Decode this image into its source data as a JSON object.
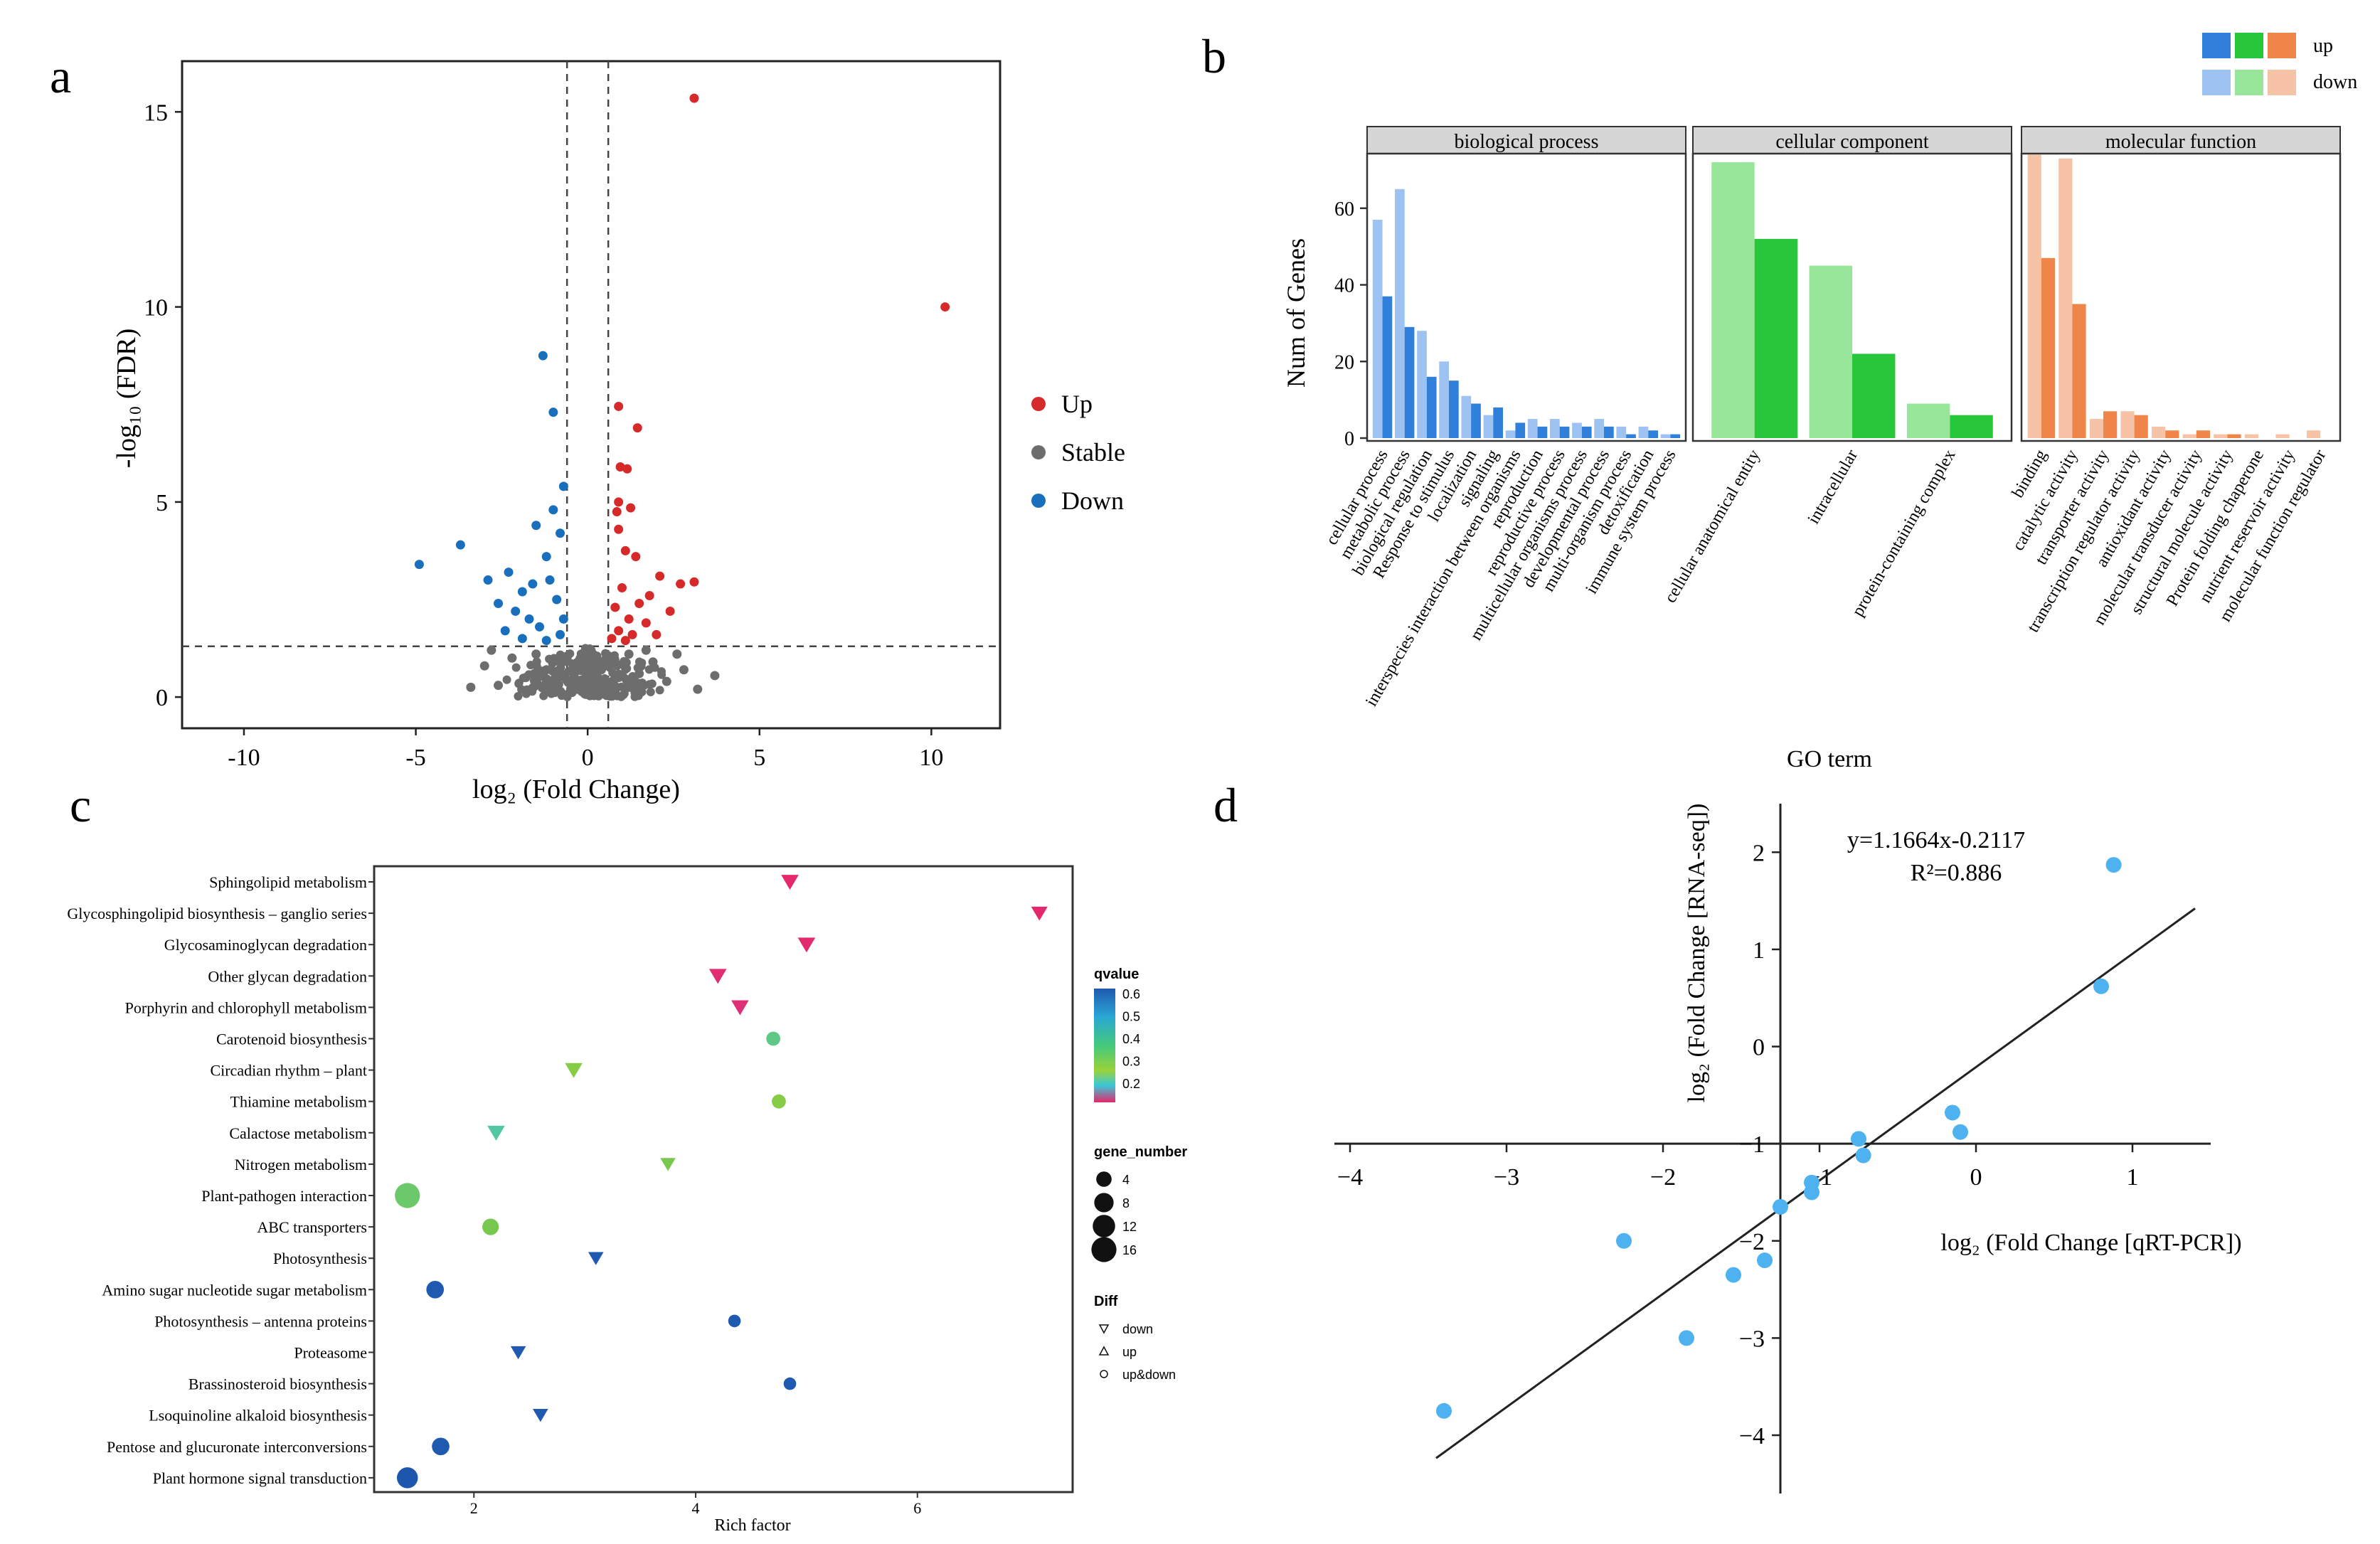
{
  "panels": {
    "a": "a",
    "b": "b",
    "c": "c",
    "d": "d"
  },
  "colors": {
    "up": "#d62a2a",
    "stable": "#6d6d6d",
    "down": "#1a6fbc",
    "bp_up": "#2f7fdb",
    "bp_down": "#9ec3f2",
    "cc_up": "#28c63a",
    "cc_down": "#98e69a",
    "mf_up": "#f0854a",
    "mf_down": "#f6c3a6",
    "qpcr": "#4db2ef"
  },
  "chart_data": [
    {
      "id": "a",
      "type": "scatter",
      "title": "",
      "xlabel": "log₂ (Fold Change)",
      "ylabel": "-log₁₀ (FDR)",
      "xlim": [
        -11.8,
        12
      ],
      "ylim": [
        -0.8,
        16.3
      ],
      "xticks": [
        -10,
        -5,
        0,
        5,
        10
      ],
      "yticks": [
        0,
        5,
        10,
        15
      ],
      "thresholds": {
        "x": [
          -0.6,
          0.6
        ],
        "y": 1.3
      },
      "legend": {
        "position": "right",
        "items": [
          "Up",
          "Stable",
          "Down"
        ]
      },
      "series": [
        {
          "name": "Up",
          "points": [
            [
              3.1,
              15.35
            ],
            [
              10.4,
              10.0
            ],
            [
              0.9,
              7.45
            ],
            [
              1.45,
              6.9
            ],
            [
              0.95,
              5.9
            ],
            [
              1.15,
              5.85
            ],
            [
              0.9,
              5.0
            ],
            [
              0.85,
              4.75
            ],
            [
              1.25,
              4.85
            ],
            [
              0.9,
              4.3
            ],
            [
              1.4,
              3.6
            ],
            [
              1.1,
              3.75
            ],
            [
              2.7,
              2.9
            ],
            [
              3.1,
              2.95
            ],
            [
              2.1,
              3.1
            ],
            [
              1.8,
              2.6
            ],
            [
              2.4,
              2.2
            ],
            [
              1.5,
              2.4
            ],
            [
              1.0,
              2.8
            ],
            [
              0.8,
              2.3
            ],
            [
              1.2,
              2.0
            ],
            [
              1.7,
              1.9
            ],
            [
              0.9,
              1.7
            ],
            [
              1.3,
              1.6
            ],
            [
              2.0,
              1.6
            ],
            [
              0.7,
              1.5
            ],
            [
              1.1,
              1.45
            ]
          ]
        },
        {
          "name": "Down",
          "points": [
            [
              -1.3,
              8.75
            ],
            [
              -1.0,
              7.3
            ],
            [
              -0.7,
              5.4
            ],
            [
              -1.0,
              4.8
            ],
            [
              -1.5,
              4.4
            ],
            [
              -0.8,
              4.2
            ],
            [
              -3.7,
              3.9
            ],
            [
              -4.9,
              3.4
            ],
            [
              -1.2,
              3.6
            ],
            [
              -2.9,
              3.0
            ],
            [
              -2.3,
              3.2
            ],
            [
              -1.9,
              2.7
            ],
            [
              -1.6,
              2.9
            ],
            [
              -1.1,
              3.0
            ],
            [
              -2.6,
              2.4
            ],
            [
              -2.1,
              2.2
            ],
            [
              -1.7,
              2.0
            ],
            [
              -0.9,
              2.5
            ],
            [
              -1.4,
              1.8
            ],
            [
              -0.8,
              1.6
            ],
            [
              -2.4,
              1.7
            ],
            [
              -1.2,
              1.45
            ],
            [
              -1.9,
              1.5
            ],
            [
              -0.7,
              2.0
            ]
          ]
        },
        {
          "name": "Stable",
          "points": [
            [
              -3.0,
              0.8
            ],
            [
              -2.6,
              0.3
            ],
            [
              -2.2,
              1.0
            ],
            [
              -1.8,
              0.5
            ],
            [
              -1.5,
              1.1
            ],
            [
              -1.2,
              0.7
            ],
            [
              -0.9,
              0.4
            ],
            [
              -0.6,
              1.0
            ],
            [
              -0.3,
              0.2
            ],
            [
              0.0,
              0.1
            ],
            [
              0.3,
              0.3
            ],
            [
              0.6,
              0.9
            ],
            [
              0.9,
              0.5
            ],
            [
              1.2,
              1.1
            ],
            [
              1.5,
              0.6
            ],
            [
              1.9,
              0.9
            ],
            [
              2.3,
              0.4
            ],
            [
              2.8,
              0.7
            ],
            [
              3.2,
              0.2
            ],
            [
              3.7,
              0.55
            ],
            [
              -3.4,
              0.25
            ],
            [
              -2.8,
              1.2
            ],
            [
              1.7,
              1.2
            ],
            [
              2.6,
              1.1
            ],
            [
              -0.4,
              0.6
            ],
            [
              0.4,
              0.7
            ]
          ]
        }
      ]
    },
    {
      "id": "b",
      "type": "bar",
      "xlabel": "GO term",
      "ylabel": "Num of Genes",
      "ylim": [
        0,
        75
      ],
      "yticks": [
        0,
        20,
        40,
        60
      ],
      "legend": {
        "position": "top-right",
        "labels": [
          "up",
          "down"
        ]
      },
      "facets": [
        {
          "name": "biological process",
          "categories": [
            "cellular process",
            "metabolic process",
            "biological regulation",
            "Response to stimulus",
            "localization",
            "signaling",
            "interspecies interaction between organisms",
            "reproduction",
            "reproductive process",
            "multicellular organisms process",
            "developmental process",
            "multi-organism process",
            "detoxification",
            "immune system process"
          ],
          "series": [
            {
              "name": "down",
              "values": [
                57,
                65,
                28,
                20,
                11,
                6,
                2,
                5,
                5,
                4,
                5,
                3,
                3,
                1
              ]
            },
            {
              "name": "up",
              "values": [
                37,
                29,
                16,
                15,
                9,
                8,
                4,
                3,
                3,
                3,
                3,
                1,
                2,
                1
              ]
            }
          ]
        },
        {
          "name": "cellular component",
          "categories": [
            "cellular anatomical entity",
            "intracellular",
            "protein-containing complex"
          ],
          "series": [
            {
              "name": "down",
              "values": [
                72,
                45,
                9
              ]
            },
            {
              "name": "up",
              "values": [
                52,
                22,
                6
              ]
            }
          ]
        },
        {
          "name": "molecular function",
          "categories": [
            "binding",
            "catalytic activity",
            "transporter activity",
            "transcription regulator activity",
            "antioxidant activity",
            "molecular transducer activity",
            "structural molecule activity",
            "Protein folding chaperone",
            "nutrient reservoir activity",
            "molecular function regulator"
          ],
          "series": [
            {
              "name": "down",
              "values": [
                74,
                73,
                5,
                7,
                3,
                1,
                1,
                1,
                1,
                2
              ]
            },
            {
              "name": "up",
              "values": [
                47,
                35,
                7,
                6,
                2,
                2,
                1,
                0,
                0,
                0
              ]
            }
          ]
        }
      ]
    },
    {
      "id": "c",
      "type": "scatter",
      "xlabel": "Rich factor",
      "xlim": [
        1.1,
        7.4
      ],
      "xticks": [
        2,
        4,
        6
      ],
      "categories": [
        "Sphingolipid metabolism",
        "Glycosphingolipid biosynthesis – ganglio series",
        "Glycosaminoglycan degradation",
        "Other glycan degradation",
        "Porphyrin and chlorophyll metabolism",
        "Carotenoid biosynthesis",
        "Circadian rhythm – plant",
        "Thiamine metabolism",
        "Calactose metabolism",
        "Nitrogen metabolism",
        "Plant-pathogen interaction",
        "ABC transporters",
        "Photosynthesis",
        "Amino sugar nucleotide sugar metabolism",
        "Photosynthesis – antenna proteins",
        "Proteasome",
        "Brassinosteroid biosynthesis",
        "Lsoquinoline alkaloid biosynthesis",
        "Pentose and glucuronate interconversions",
        "Plant hormone signal transduction"
      ],
      "points": [
        {
          "term": "Sphingolipid metabolism",
          "rich": 4.85,
          "q": 0.12,
          "genes": 6,
          "diff": "down"
        },
        {
          "term": "Glycosphingolipid biosynthesis – ganglio series",
          "rich": 7.1,
          "q": 0.12,
          "genes": 5,
          "diff": "down"
        },
        {
          "term": "Glycosaminoglycan degradation",
          "rich": 5.0,
          "q": 0.13,
          "genes": 6,
          "diff": "down"
        },
        {
          "term": "Other glycan degradation",
          "rich": 4.2,
          "q": 0.14,
          "genes": 6,
          "diff": "down"
        },
        {
          "term": "Porphyrin and chlorophyll metabolism",
          "rich": 4.4,
          "q": 0.15,
          "genes": 6,
          "diff": "down"
        },
        {
          "term": "Carotenoid biosynthesis",
          "rich": 4.7,
          "q": 0.36,
          "genes": 3,
          "diff": "up&down"
        },
        {
          "term": "Circadian rhythm – plant",
          "rich": 2.9,
          "q": 0.42,
          "genes": 6,
          "diff": "down"
        },
        {
          "term": "Thiamine metabolism",
          "rich": 4.75,
          "q": 0.42,
          "genes": 3,
          "diff": "up&down"
        },
        {
          "term": "Calactose metabolism",
          "rich": 2.2,
          "q": 0.34,
          "genes": 6,
          "diff": "down"
        },
        {
          "term": "Nitrogen metabolism",
          "rich": 3.75,
          "q": 0.4,
          "genes": 4,
          "diff": "down"
        },
        {
          "term": "Plant-pathogen interaction",
          "rich": 1.4,
          "q": 0.38,
          "genes": 16,
          "diff": "up&down"
        },
        {
          "term": "ABC transporters",
          "rich": 2.15,
          "q": 0.4,
          "genes": 5,
          "diff": "up&down"
        },
        {
          "term": "Photosynthesis",
          "rich": 3.1,
          "q": 0.6,
          "genes": 4,
          "diff": "down"
        },
        {
          "term": "Amino sugar nucleotide sugar metabolism",
          "rich": 1.65,
          "q": 0.6,
          "genes": 6,
          "diff": "up&down"
        },
        {
          "term": "Photosynthesis – antenna proteins",
          "rich": 4.35,
          "q": 0.6,
          "genes": 2,
          "diff": "up&down"
        },
        {
          "term": "Proteasome",
          "rich": 2.4,
          "q": 0.6,
          "genes": 4,
          "diff": "down"
        },
        {
          "term": "Brassinosteroid biosynthesis",
          "rich": 4.85,
          "q": 0.6,
          "genes": 2,
          "diff": "up&down"
        },
        {
          "term": "Lsoquinoline alkaloid biosynthesis",
          "rich": 2.6,
          "q": 0.6,
          "genes": 4,
          "diff": "down"
        },
        {
          "term": "Pentose and glucuronate interconversions",
          "rich": 1.7,
          "q": 0.6,
          "genes": 6,
          "diff": "up&down"
        },
        {
          "term": "Plant hormone signal transduction",
          "rich": 1.4,
          "q": 0.62,
          "genes": 10,
          "diff": "up&down"
        }
      ],
      "legend_qvalue": {
        "title": "qvalue",
        "ticks": [
          "0.6",
          "0.5",
          "0.4",
          "0.3",
          "0.2"
        ]
      },
      "legend_genes": {
        "title": "gene_number",
        "ticks": [
          "4",
          "8",
          "12",
          "16"
        ]
      },
      "legend_diff": {
        "title": "Diff",
        "items": [
          "down",
          "up",
          "up&down"
        ]
      }
    },
    {
      "id": "d",
      "type": "scatter",
      "xlabel": "log₂ (Fold Change [qRT-PCR])",
      "ylabel": "log₂ (Fold Change [RNA-seq])",
      "xlim": [
        -4.1,
        1.5
      ],
      "ylim": [
        -4.6,
        2.5
      ],
      "xticks": [
        -4,
        -3,
        -2,
        -1,
        0,
        1
      ],
      "yticks": [
        -4,
        -3,
        -2,
        -1,
        0,
        1,
        2
      ],
      "equation": "y=1.1664x-0.2117",
      "r2": "R²=0.886",
      "fit": {
        "slope": 1.1664,
        "intercept": -0.2117,
        "x_range": [
          -3.45,
          1.4
        ]
      },
      "points": [
        [
          -3.4,
          -3.75
        ],
        [
          -2.25,
          -2.0
        ],
        [
          -1.85,
          -3.0
        ],
        [
          -1.55,
          -2.35
        ],
        [
          -1.35,
          -2.2
        ],
        [
          -1.25,
          -1.65
        ],
        [
          -1.05,
          -1.4
        ],
        [
          -1.05,
          -1.5
        ],
        [
          -0.75,
          -0.95
        ],
        [
          -0.72,
          -1.12
        ],
        [
          -0.15,
          -0.68
        ],
        [
          -0.1,
          -0.88
        ],
        [
          0.8,
          0.62
        ],
        [
          0.88,
          1.87
        ]
      ]
    }
  ]
}
